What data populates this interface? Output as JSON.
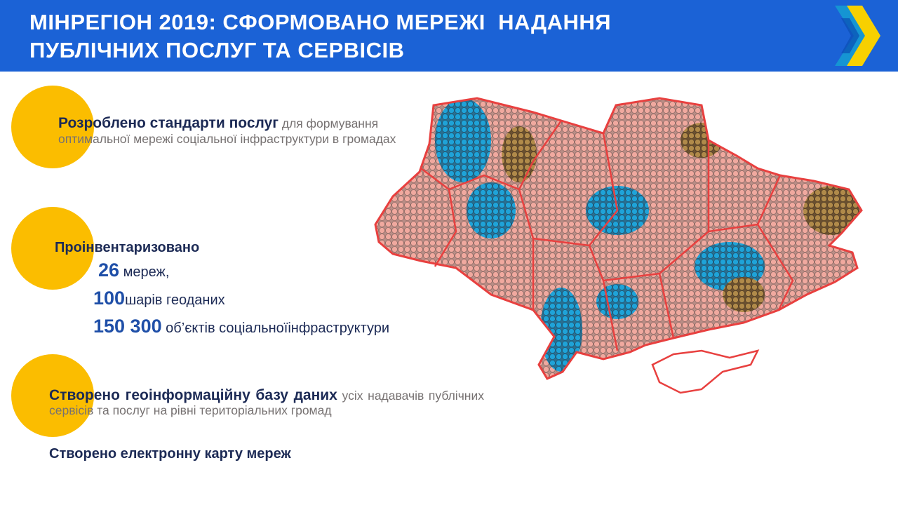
{
  "header": {
    "title_lines": [
      "МІНРЕГІОН 2019: СФОРМОВАНО МЕРЕЖІ  НАДАННЯ",
      "ПУБЛІЧНИХ ПОСЛУГ ТА СЕРВІСІВ"
    ]
  },
  "blocks": [
    {
      "bold": "Розроблено стандарти послуг",
      "text": "для формування оптимальної мережі соціальної інфраструктури  в громадах"
    },
    {
      "heading": "Проінвентаризовано",
      "items": [
        {
          "number": "26",
          "text": "мереж,"
        },
        {
          "number": "100",
          "text": "шарів геоданих"
        },
        {
          "number": "150 300",
          "text": "об’єктів соціальноїінфраструктури"
        }
      ]
    },
    {
      "bold": "Створено геоінформаційну базу даних",
      "text": "усіх надавачів публічних сервісів та послуг на рівні територіальних громад",
      "last": "Створено електронну карту мереж"
    }
  ]
}
